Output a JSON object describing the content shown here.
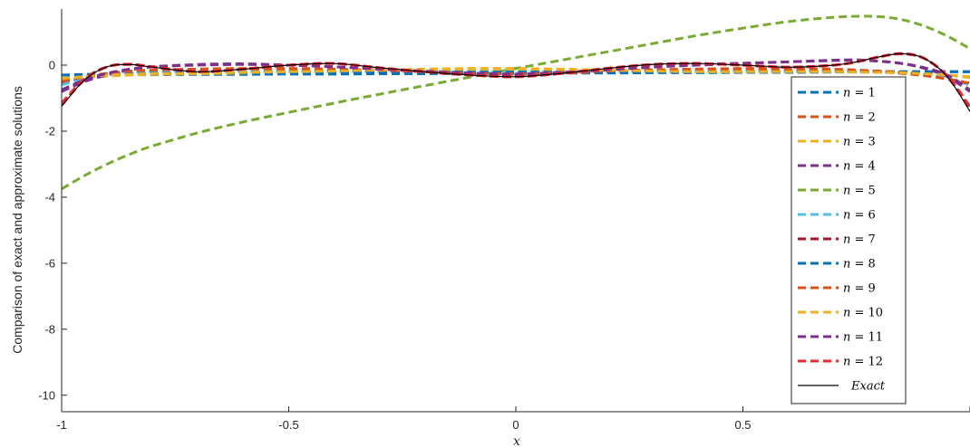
{
  "chart_data": {
    "type": "line",
    "title": "",
    "xlabel": "x",
    "ylabel": "Comparison of exact and approximate solutions",
    "xlim": [
      -1,
      1
    ],
    "ylim": [
      -10.5,
      1.7
    ],
    "xticks": [
      -1,
      -0.5,
      0,
      0.5,
      1
    ],
    "xtick_labels": [
      "-1",
      "-0.5",
      "0",
      "0.5",
      ""
    ],
    "yticks": [
      -10,
      -8,
      -6,
      -4,
      -2,
      0
    ],
    "ytick_labels": [
      "-10",
      "-8",
      "-6",
      "-4",
      "-2",
      "0"
    ],
    "grid": false,
    "legend_position": "lower-right",
    "x": [
      -1,
      -0.95,
      -0.9,
      -0.85,
      -0.8,
      -0.7,
      -0.6,
      -0.5,
      -0.4,
      -0.3,
      -0.2,
      -0.1,
      0,
      0.1,
      0.2,
      0.3,
      0.4,
      0.5,
      0.6,
      0.7,
      0.75,
      0.8,
      0.85,
      0.9,
      0.95,
      1
    ],
    "series": [
      {
        "name": "n = 1",
        "label_prefix": "n",
        "label_value": "1",
        "color": "#0072BD",
        "dash": true,
        "values": [
          -0.3,
          -0.3,
          -0.29,
          -0.29,
          -0.29,
          -0.28,
          -0.28,
          -0.27,
          -0.27,
          -0.26,
          -0.26,
          -0.25,
          -0.25,
          -0.24,
          -0.24,
          -0.23,
          -0.23,
          -0.22,
          -0.22,
          -0.21,
          -0.21,
          -0.21,
          -0.2,
          -0.2,
          -0.2,
          -0.2
        ]
      },
      {
        "name": "n = 2",
        "label_prefix": "n",
        "label_value": "2",
        "color": "#D95319",
        "dash": true,
        "values": [
          -0.55,
          -0.4,
          -0.3,
          -0.22,
          -0.17,
          -0.12,
          -0.1,
          -0.1,
          -0.12,
          -0.15,
          -0.2,
          -0.25,
          -0.28,
          -0.25,
          -0.2,
          -0.15,
          -0.12,
          -0.1,
          -0.1,
          -0.12,
          -0.15,
          -0.2,
          -0.25,
          -0.32,
          -0.42,
          -0.55
        ]
      },
      {
        "name": "n = 3",
        "label_prefix": "n",
        "label_value": "3",
        "color": "#EDB120",
        "dash": true,
        "values": [
          -0.45,
          -0.38,
          -0.33,
          -0.3,
          -0.28,
          -0.26,
          -0.24,
          -0.2,
          -0.18,
          -0.15,
          -0.12,
          -0.1,
          -0.1,
          -0.12,
          -0.15,
          -0.18,
          -0.2,
          -0.2,
          -0.2,
          -0.2,
          -0.2,
          -0.22,
          -0.22,
          -0.25,
          -0.3,
          -0.38
        ]
      },
      {
        "name": "n = 4",
        "label_prefix": "n",
        "label_value": "4",
        "color": "#7E2F8E",
        "dash": true,
        "values": [
          -0.8,
          -0.5,
          -0.3,
          -0.15,
          -0.05,
          0.02,
          0.04,
          0.0,
          -0.05,
          -0.12,
          -0.2,
          -0.25,
          -0.28,
          -0.22,
          -0.15,
          -0.06,
          0.02,
          0.06,
          0.1,
          0.15,
          0.16,
          0.12,
          0.05,
          -0.1,
          -0.35,
          -0.8
        ]
      },
      {
        "name": "n = 5",
        "label_prefix": "n",
        "label_value": "5",
        "color": "#77AC30",
        "dash": true,
        "values": [
          -3.75,
          -3.35,
          -3.0,
          -2.7,
          -2.45,
          -2.05,
          -1.72,
          -1.43,
          -1.15,
          -0.88,
          -0.62,
          -0.36,
          -0.1,
          0.15,
          0.4,
          0.65,
          0.9,
          1.12,
          1.32,
          1.45,
          1.48,
          1.47,
          1.38,
          1.18,
          0.88,
          0.5
        ]
      },
      {
        "name": "n = 6",
        "label_prefix": "n",
        "label_value": "6",
        "color": "#4DBEEE",
        "dash": true,
        "values": [
          -0.6,
          -0.4,
          -0.28,
          -0.22,
          -0.2,
          -0.2,
          -0.2,
          -0.2,
          -0.2,
          -0.2,
          -0.2,
          -0.2,
          -0.2,
          -0.2,
          -0.2,
          -0.2,
          -0.2,
          -0.2,
          -0.2,
          -0.2,
          -0.2,
          -0.2,
          -0.22,
          -0.28,
          -0.4,
          -0.6
        ]
      },
      {
        "name": "n = 7",
        "label_prefix": "n",
        "label_value": "7",
        "color": "#A2142F",
        "dash": true,
        "values": [
          -1.2,
          -0.45,
          -0.05,
          0.02,
          -0.05,
          -0.2,
          -0.12,
          0.0,
          0.05,
          -0.08,
          -0.2,
          -0.3,
          -0.35,
          -0.25,
          -0.1,
          0.02,
          0.05,
          0.0,
          -0.06,
          0.0,
          0.1,
          0.25,
          0.35,
          0.2,
          -0.35,
          -1.3
        ]
      },
      {
        "name": "n = 8",
        "label_prefix": "n",
        "label_value": "8",
        "color": "#0072BD",
        "dash": true,
        "values": [
          -0.3,
          -0.28,
          -0.27,
          -0.26,
          -0.25,
          -0.24,
          -0.23,
          -0.22,
          -0.22,
          -0.21,
          -0.21,
          -0.21,
          -0.21,
          -0.21,
          -0.21,
          -0.21,
          -0.21,
          -0.21,
          -0.21,
          -0.2,
          -0.2,
          -0.2,
          -0.2,
          -0.2,
          -0.2,
          -0.2
        ]
      },
      {
        "name": "n = 9",
        "label_prefix": "n",
        "label_value": "9",
        "color": "#D95319",
        "dash": true,
        "values": [
          -0.5,
          -0.35,
          -0.25,
          -0.18,
          -0.15,
          -0.12,
          -0.12,
          -0.12,
          -0.14,
          -0.16,
          -0.2,
          -0.24,
          -0.26,
          -0.22,
          -0.18,
          -0.14,
          -0.12,
          -0.12,
          -0.13,
          -0.14,
          -0.15,
          -0.18,
          -0.22,
          -0.3,
          -0.42,
          -0.55
        ]
      },
      {
        "name": "n = 10",
        "label_prefix": "n",
        "label_value": "10",
        "color": "#EDB120",
        "dash": true,
        "values": [
          -0.4,
          -0.35,
          -0.3,
          -0.28,
          -0.26,
          -0.25,
          -0.22,
          -0.2,
          -0.18,
          -0.15,
          -0.13,
          -0.12,
          -0.12,
          -0.13,
          -0.15,
          -0.18,
          -0.2,
          -0.2,
          -0.2,
          -0.2,
          -0.21,
          -0.22,
          -0.23,
          -0.26,
          -0.3,
          -0.35
        ]
      },
      {
        "name": "n = 11",
        "label_prefix": "n",
        "label_value": "11",
        "color": "#7E2F8E",
        "dash": true,
        "values": [
          -0.75,
          -0.45,
          -0.25,
          -0.12,
          -0.05,
          0.0,
          0.02,
          0.0,
          -0.05,
          -0.12,
          -0.18,
          -0.24,
          -0.27,
          -0.22,
          -0.14,
          -0.06,
          0.0,
          0.05,
          0.1,
          0.14,
          0.15,
          0.12,
          0.05,
          -0.08,
          -0.3,
          -0.75
        ]
      },
      {
        "name": "n = 12",
        "label_prefix": "n",
        "label_value": "12",
        "color": "#F2272E",
        "dash": true,
        "values": [
          -1.15,
          -0.42,
          -0.05,
          0.03,
          -0.05,
          -0.19,
          -0.12,
          0.0,
          0.05,
          -0.08,
          -0.2,
          -0.3,
          -0.35,
          -0.25,
          -0.1,
          0.02,
          0.05,
          0.0,
          -0.06,
          0.0,
          0.1,
          0.25,
          0.34,
          0.2,
          -0.33,
          -1.25
        ]
      },
      {
        "name": "Exact",
        "label_prefix": "",
        "label_value": "Exact",
        "color": "#000000",
        "dash": false,
        "values": [
          -1.25,
          -0.45,
          -0.05,
          0.02,
          -0.06,
          -0.2,
          -0.12,
          0.0,
          0.05,
          -0.08,
          -0.2,
          -0.3,
          -0.35,
          -0.25,
          -0.1,
          0.02,
          0.05,
          0.0,
          -0.06,
          0.0,
          0.1,
          0.25,
          0.35,
          0.2,
          -0.35,
          -1.4
        ]
      }
    ]
  }
}
